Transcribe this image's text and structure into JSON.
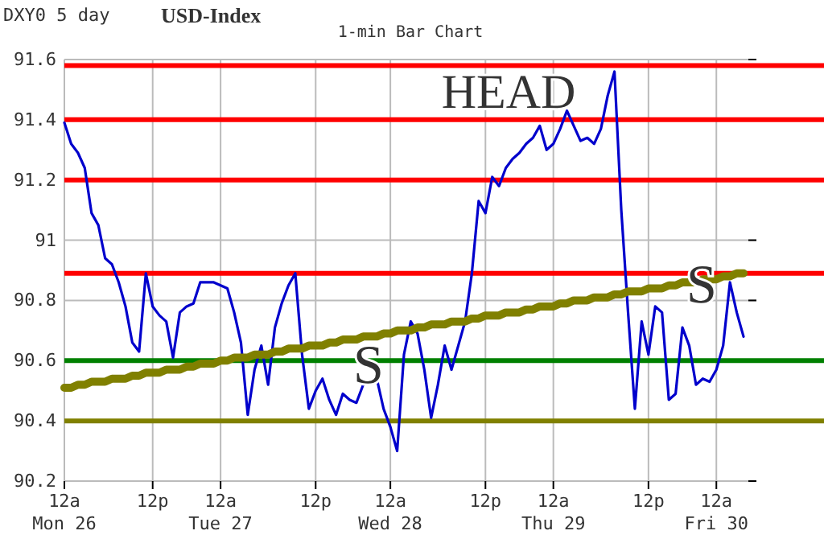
{
  "chart_data": {
    "type": "line",
    "title": "USD-Index",
    "subtitle": "1-min Bar Chart",
    "annotations": [
      "DXY0 5 day",
      "HEAD",
      "S",
      "S"
    ],
    "categories": [
      "12a\nMon 26",
      null,
      null,
      null,
      null,
      null,
      null,
      null,
      null,
      null,
      null,
      null,
      null,
      "12p",
      null,
      null,
      null,
      null,
      null,
      null,
      null,
      null,
      null,
      "12a\nTue 27",
      null,
      null,
      null,
      null,
      null,
      null,
      null,
      null,
      null,
      null,
      null,
      null,
      null,
      "12p",
      null,
      null,
      null,
      null,
      null,
      null,
      null,
      null,
      null,
      null,
      "12a\nWed 28",
      null,
      null,
      null,
      null,
      null,
      null,
      null,
      null,
      null,
      null,
      null,
      null,
      null,
      "12p",
      null,
      null,
      null,
      null,
      null,
      null,
      null,
      null,
      null,
      "12a\nThu 29",
      null,
      null,
      null,
      null,
      null,
      null,
      null,
      null,
      null,
      null,
      null,
      null,
      null,
      "12p",
      null,
      null,
      null,
      null,
      null,
      null,
      null,
      null,
      null,
      "12a\nFri 30",
      null,
      null,
      null,
      null
    ],
    "ylim": [
      90.2,
      91.6
    ],
    "yticks": [
      90.2,
      90.4,
      90.6,
      90.8,
      91,
      91.2,
      91.4,
      91.6
    ],
    "grid": true,
    "series": [
      {
        "color": "#0000cc",
        "values": [
          91.39,
          91.32,
          91.29,
          91.24,
          91.09,
          91.05,
          90.94,
          90.92,
          90.86,
          90.78,
          90.66,
          90.63,
          90.89,
          90.78,
          90.75,
          90.73,
          90.61,
          90.76,
          90.78,
          90.79,
          90.86,
          90.86,
          90.86,
          90.85,
          90.84,
          90.76,
          90.66,
          90.42,
          90.57,
          90.65,
          90.52,
          90.71,
          90.79,
          90.85,
          90.89,
          90.62,
          90.44,
          90.5,
          90.54,
          90.47,
          90.42,
          90.49,
          90.47,
          90.46,
          90.52,
          90.53,
          90.54,
          90.44,
          90.38,
          90.3,
          90.62,
          90.73,
          90.69,
          90.57,
          90.41,
          90.52,
          90.65,
          90.57,
          90.65,
          90.73,
          90.89,
          91.13,
          91.09,
          91.21,
          91.18,
          91.24,
          91.27,
          91.29,
          91.32,
          91.34,
          91.38,
          91.3,
          91.32,
          91.37,
          91.43,
          91.38,
          91.33,
          91.34,
          91.32,
          91.37,
          91.48,
          91.56,
          91.1,
          90.76,
          90.44,
          90.73,
          90.62,
          90.78,
          90.76,
          90.47,
          90.49,
          90.71,
          90.65,
          90.52,
          90.54,
          90.53,
          90.57,
          90.65,
          90.86,
          90.76,
          90.68
        ]
      },
      {
        "color": "#808000",
        "values": [
          90.51,
          90.51,
          90.52,
          90.52,
          90.53,
          90.53,
          90.53,
          90.54,
          90.54,
          90.54,
          90.55,
          90.55,
          90.56,
          90.56,
          90.56,
          90.57,
          90.57,
          90.57,
          90.58,
          90.58,
          90.59,
          90.59,
          90.59,
          90.6,
          90.6,
          90.61,
          90.61,
          90.61,
          90.62,
          90.62,
          90.62,
          90.63,
          90.63,
          90.64,
          90.64,
          90.64,
          90.65,
          90.65,
          90.65,
          90.66,
          90.66,
          90.67,
          90.67,
          90.67,
          90.68,
          90.68,
          90.68,
          90.69,
          90.69,
          90.7,
          90.7,
          90.7,
          90.71,
          90.71,
          90.72,
          90.72,
          90.72,
          90.73,
          90.73,
          90.73,
          90.74,
          90.74,
          90.75,
          90.75,
          90.75,
          90.76,
          90.76,
          90.76,
          90.77,
          90.77,
          90.78,
          90.78,
          90.78,
          90.79,
          90.79,
          90.8,
          90.8,
          90.8,
          90.81,
          90.81,
          90.81,
          90.82,
          90.82,
          90.83,
          90.83,
          90.83,
          90.84,
          90.84,
          90.84,
          90.85,
          90.85,
          90.86,
          90.86,
          90.86,
          90.87,
          90.87,
          90.87,
          90.88,
          90.88,
          90.89,
          90.89
        ]
      }
    ],
    "ref_lines": [
      {
        "axis": "y",
        "value": 91.58,
        "color": "#ff0000"
      },
      {
        "axis": "y",
        "value": 91.4,
        "color": "#ff0000"
      },
      {
        "axis": "y",
        "value": 91.2,
        "color": "#ff0000"
      },
      {
        "axis": "y",
        "value": 90.89,
        "color": "#ff0000"
      },
      {
        "axis": "y",
        "value": 90.6,
        "color": "#008000"
      },
      {
        "axis": "y",
        "value": 90.4,
        "color": "#808000"
      }
    ]
  }
}
